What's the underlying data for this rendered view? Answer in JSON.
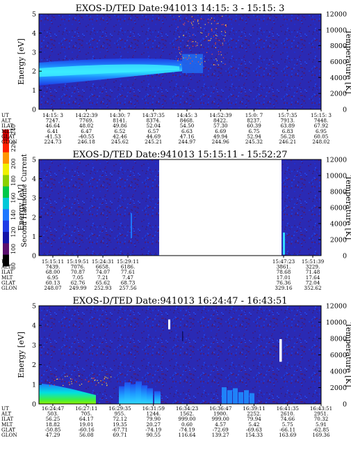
{
  "colorbar": {
    "label": "Second Harmonic Current",
    "ticks": [
      80,
      100,
      120,
      140,
      160,
      180,
      200,
      220,
      240
    ],
    "colors": [
      "#000000",
      "#5a0f6e",
      "#1414a8",
      "#1e3ce6",
      "#1e78ff",
      "#00c8d8",
      "#00c84a",
      "#8cd000",
      "#f0f000",
      "#ff9600",
      "#ff2000",
      "#d00000"
    ]
  },
  "chart_data": [
    {
      "type": "heatmap",
      "title": "EXOS-D/TED    Date:941013  14:15: 3 - 15:15: 3",
      "ylabel": "Energy [eV]",
      "y2label": "Temperature [K]",
      "ylim": [
        0,
        5
      ],
      "y2lim": [
        0,
        12000
      ],
      "yticks": [
        "0",
        "1",
        "2",
        "3",
        "4",
        "5"
      ],
      "y2ticks": [
        "0",
        "2000",
        "4000",
        "6000",
        "8000",
        "10000",
        "12000"
      ],
      "table": [
        {
          "label": "UT",
          "values": [
            "14:15: 3",
            "14:22:39",
            "14:30: 7",
            "14:37:35",
            "14:45: 3",
            "14:52:39",
            "15:0: 7",
            "15:7:35",
            "15:15: 3"
          ]
        },
        {
          "label": "ALT",
          "values": [
            "7247.",
            "7769.",
            "8141.",
            "8374.",
            "8468.",
            "8422.",
            "8237.",
            "7913.",
            "7448."
          ]
        },
        {
          "label": "ILAT",
          "values": [
            "46.64",
            "48.02",
            "49.86",
            "52.04",
            "54.50",
            "57.30",
            "60.39",
            "63.89",
            "67.92"
          ]
        },
        {
          "label": "MLT",
          "values": [
            "6.41",
            "6.47",
            "6.52",
            "6.57",
            "6.63",
            "6.69",
            "6.75",
            "6.83",
            "6.95"
          ]
        },
        {
          "label": "GLAT",
          "values": [
            "-41.53",
            "-40.55",
            "42.46",
            "44.69",
            "47.16",
            "49.94",
            "52.94",
            "56.28",
            "60.05"
          ]
        },
        {
          "label": "GLON",
          "values": [
            "224.73",
            "246.18",
            "245.62",
            "245.21",
            "244.97",
            "244.96",
            "245.32",
            "246.21",
            "248.02"
          ]
        }
      ]
    },
    {
      "type": "heatmap",
      "title": "EXOS-D/TED    Date:941013  15:15:11 - 15:52:27",
      "ylabel": "Energy [eV]",
      "y2label": "Temperature [K]",
      "ylim": [
        0,
        5
      ],
      "y2lim": [
        0,
        12000
      ],
      "yticks": [
        "0",
        "1",
        "2",
        "3",
        "4",
        "5"
      ],
      "y2ticks": [
        "0",
        "2000",
        "4000",
        "6000",
        "8000",
        "10000",
        "12000"
      ],
      "table": [
        {
          "label": "UT",
          "values": [
            "15:15:11",
            "15:19:51",
            "15:24:31",
            "15:29:11",
            "15:47:23",
            "15:51:39"
          ]
        },
        {
          "label": "ALT",
          "values": [
            "7439.",
            "7076.",
            "6658.",
            "6186.",
            "3861.",
            "3229."
          ]
        },
        {
          "label": "ILAT",
          "values": [
            "68.00",
            "70.87",
            "74.07",
            "77.61",
            "78.68",
            "71.48"
          ]
        },
        {
          "label": "MLT",
          "values": [
            "6.95",
            "7.05",
            "7.21",
            "7.47",
            "17.01",
            "17.64"
          ]
        },
        {
          "label": "GLAT",
          "values": [
            "60.13",
            "62.76",
            "65.62",
            "68.73",
            "76.36",
            "72.04"
          ]
        },
        {
          "label": "GLON",
          "values": [
            "248.07",
            "249.99",
            "252.93",
            "257.56",
            "329.16",
            "352.62"
          ]
        }
      ]
    },
    {
      "type": "heatmap",
      "title": "EXOS-D/TED    Date:941013  16:24:47 - 16:43:51",
      "ylabel": "Energy [eV]",
      "y2label": "Temperature [K]",
      "ylim": [
        0,
        5
      ],
      "y2lim": [
        0,
        12000
      ],
      "yticks": [
        "0",
        "1",
        "2",
        "3",
        "4",
        "5"
      ],
      "y2ticks": [
        "0",
        "2000",
        "4000",
        "6000",
        "8000",
        "10000",
        "12000"
      ],
      "table": [
        {
          "label": "UT",
          "values": [
            "16:24:47",
            "16:27:11",
            "16:29:35",
            "16:31:59",
            "16:34:23",
            "16:36:47",
            "16:39:11",
            "16:41:35",
            "16:43:51"
          ]
        },
        {
          "label": "ALT",
          "values": [
            "503.",
            "705.",
            "955.",
            "1244.",
            "1562.",
            "1900.",
            "2252.",
            "2610.",
            "2951."
          ]
        },
        {
          "label": "ILAT",
          "values": [
            "56.25",
            "64.17",
            "72.12",
            "79.90",
            "999.00",
            "999.00",
            "79.94",
            "74.66",
            "70.32"
          ]
        },
        {
          "label": "MLT",
          "values": [
            "18.82",
            "19.01",
            "19.35",
            "20.27",
            "0.60",
            "4.57",
            "5.42",
            "5.75",
            "5.91"
          ]
        },
        {
          "label": "GLAT",
          "values": [
            "-50.85",
            "-60.16",
            "-67.71",
            "-74.19",
            "-74.19",
            "-72.69",
            "-69.63",
            "-66.11",
            "-62.85"
          ]
        },
        {
          "label": "GLON",
          "values": [
            "47.29",
            "56.08",
            "69.71",
            "90.55",
            "116.64",
            "139.27",
            "154.33",
            "163.69",
            "169.36"
          ]
        }
      ]
    }
  ]
}
